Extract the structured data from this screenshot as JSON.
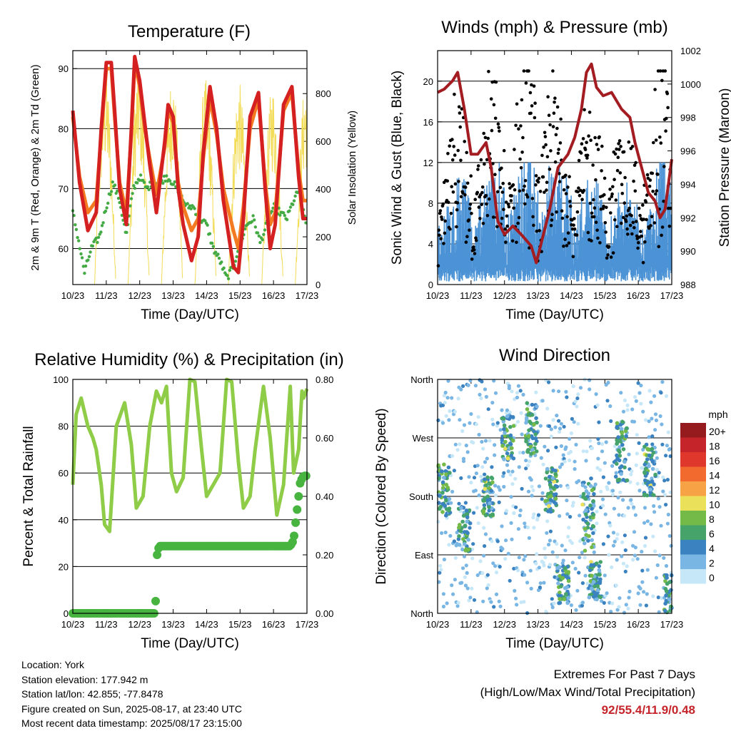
{
  "colors": {
    "temp2m": "#d42020",
    "temp9m": "#f47a22",
    "dewpoint": "#44aa44",
    "solar": "#f2dc58",
    "gust": "#000000",
    "wind": "#4c93d6",
    "pressure": "#a31c21",
    "rh": "#8fcc47",
    "precip": "#48b440",
    "gridline": "#000000",
    "extremes": "#c4242a"
  },
  "speed_scale": {
    "unit": "mph",
    "labels": [
      "20+",
      "18",
      "16",
      "14",
      "12",
      "10",
      "8",
      "6",
      "4",
      "2",
      "0"
    ],
    "colors": [
      "#961b1e",
      "#c4242a",
      "#e0372c",
      "#f26a2e",
      "#f7a345",
      "#ebe05a",
      "#74ba48",
      "#46a36a",
      "#3b82c0",
      "#7ab6e3",
      "#c6e7f7"
    ]
  },
  "chart_data": [
    {
      "type": "line",
      "title": "Temperature (F)",
      "xlabel": "Time (Day/UTC)",
      "ylabel": "2m & 9m T (Red, Orange) & 2m Td (Green)",
      "y2label": "Solar Insolation (Yellow)",
      "x_ticks": [
        "10/23",
        "11/23",
        "12/23",
        "13/23",
        "14/23",
        "15/23",
        "16/23",
        "17/23"
      ],
      "xlim": [
        0,
        7
      ],
      "ylim": [
        54,
        93
      ],
      "y_ticks": [
        60,
        70,
        80,
        90
      ],
      "y2lim": [
        0,
        980
      ],
      "y2_ticks": [
        0,
        200,
        400,
        600,
        800
      ],
      "grid": "horizontal",
      "series": [
        {
          "name": "2m T",
          "key": "temp2m",
          "axis": "y",
          "x": [
            0,
            0.2,
            0.45,
            0.7,
            0.85,
            1.0,
            1.15,
            1.25,
            1.4,
            1.6,
            1.75,
            1.85,
            2.0,
            2.15,
            2.3,
            2.5,
            2.75,
            2.85,
            3.0,
            3.15,
            3.3,
            3.55,
            3.75,
            3.9,
            4.1,
            4.3,
            4.5,
            4.8,
            4.95,
            5.1,
            5.3,
            5.55,
            5.75,
            5.9,
            6.05,
            6.3,
            6.55,
            6.75,
            6.88,
            7.0
          ],
          "y": [
            83,
            71,
            63,
            66,
            80,
            91,
            91,
            83,
            70,
            64,
            80,
            92,
            88,
            81,
            74,
            66,
            78,
            84,
            82,
            70,
            64,
            58,
            62,
            76,
            87,
            80,
            68,
            57,
            56,
            65,
            82,
            86,
            70,
            60,
            64,
            84,
            87,
            72,
            65,
            65
          ]
        },
        {
          "name": "9m T",
          "key": "temp9m",
          "axis": "y",
          "x": [
            0,
            0.2,
            0.45,
            0.7,
            0.85,
            1.0,
            1.15,
            1.25,
            1.4,
            1.6,
            1.75,
            1.85,
            2.0,
            2.15,
            2.3,
            2.5,
            2.75,
            2.85,
            3.0,
            3.15,
            3.3,
            3.55,
            3.75,
            3.9,
            4.1,
            4.3,
            4.5,
            4.8,
            4.95,
            5.1,
            5.3,
            5.55,
            5.75,
            5.9,
            6.05,
            6.3,
            6.55,
            6.75,
            6.88,
            7.0
          ],
          "y": [
            82,
            72,
            66,
            68,
            79,
            90,
            90,
            82,
            71,
            66,
            79,
            91,
            87,
            80,
            75,
            69,
            77,
            83,
            81,
            71,
            67,
            63,
            65,
            75,
            85,
            79,
            70,
            63,
            60,
            67,
            80,
            85,
            71,
            64,
            66,
            83,
            86,
            73,
            68,
            68
          ]
        },
        {
          "name": "2m Td",
          "key": "dewpoint",
          "axis": "y",
          "x": [
            0,
            0.15,
            0.35,
            0.55,
            0.8,
            1.0,
            1.2,
            1.4,
            1.6,
            1.8,
            2.0,
            2.2,
            2.4,
            2.6,
            2.8,
            3.0,
            3.2,
            3.4,
            3.6,
            3.8,
            4.0,
            4.2,
            4.4,
            4.6,
            4.8,
            4.95,
            5.2,
            5.4,
            5.6,
            5.8,
            6.0,
            6.2,
            6.4,
            6.6,
            6.8,
            6.9,
            7.0
          ],
          "y": [
            66,
            62,
            56,
            60,
            62,
            67,
            71,
            68,
            62,
            70,
            72,
            70,
            71,
            71,
            72,
            71,
            69,
            67,
            67,
            65,
            64,
            60,
            58,
            55,
            57,
            60,
            64,
            65,
            61,
            64,
            67,
            66,
            65,
            68,
            70,
            66,
            64
          ]
        },
        {
          "name": "Solar",
          "key": "solar",
          "axis": "y2",
          "peaks_x": [
            0.97,
            1.97,
            2.97,
            3.97,
            4.97,
            5.97,
            6.97
          ],
          "peaks_y": [
            900,
            920,
            880,
            860,
            850,
            840,
            870
          ]
        }
      ]
    },
    {
      "type": "scatter",
      "title": "Winds (mph) & Pressure (mb)",
      "xlabel": "Time (Day/UTC)",
      "ylabel": "Sonic Wind & Gust (Blue, Black)",
      "y2label": "Station Pressure (Maroon)",
      "x_ticks": [
        "10/23",
        "11/23",
        "12/23",
        "13/23",
        "14/23",
        "15/23",
        "16/23",
        "17/23"
      ],
      "xlim": [
        0,
        7
      ],
      "ylim": [
        0,
        23
      ],
      "y_ticks": [
        0,
        4,
        8,
        12,
        16,
        20
      ],
      "y2lim": [
        988,
        1002
      ],
      "y2_ticks": [
        988,
        990,
        992,
        994,
        996,
        998,
        1000,
        1002
      ],
      "grid": "horizontal",
      "series": [
        {
          "name": "Station Pressure",
          "key": "pressure",
          "axis": "y2",
          "x": [
            0,
            0.2,
            0.45,
            0.6,
            0.8,
            1.0,
            1.2,
            1.45,
            1.6,
            1.8,
            2.0,
            2.25,
            2.5,
            2.8,
            2.95,
            3.1,
            3.35,
            3.6,
            3.9,
            4.1,
            4.3,
            4.45,
            4.6,
            4.75,
            4.95,
            5.2,
            5.5,
            5.75,
            5.9,
            6.1,
            6.3,
            6.5,
            6.65,
            6.8,
            7.0
          ],
          "y": [
            999.5,
            999.7,
            1000.2,
            1000.7,
            998.5,
            995.8,
            995.8,
            996.5,
            995.0,
            991.8,
            991.0,
            991.5,
            991.0,
            990.3,
            989.3,
            990.5,
            992.5,
            995.0,
            995.8,
            996.8,
            998.5,
            1000.7,
            1001.2,
            999.8,
            999.3,
            999.5,
            998.5,
            998.0,
            996.5,
            995.0,
            993.5,
            993.0,
            992.0,
            992.5,
            995.5
          ]
        },
        {
          "name": "Gust",
          "key": "gust",
          "axis": "y",
          "daily_peaks": [
            12,
            14,
            16,
            20,
            15,
            13,
            11,
            20
          ]
        },
        {
          "name": "Sonic Wind",
          "key": "wind",
          "axis": "y",
          "daily_peaks": [
            8,
            9,
            10,
            12,
            9,
            8,
            7,
            11
          ]
        }
      ]
    },
    {
      "type": "line",
      "title": "Relative Humidity (%) & Precipitation (in)",
      "xlabel": "Time (Day/UTC)",
      "ylabel": "Percent & Total Rainfall",
      "x_ticks": [
        "10/23",
        "11/23",
        "12/23",
        "13/23",
        "14/23",
        "15/23",
        "16/23",
        "17/23"
      ],
      "xlim": [
        0,
        7
      ],
      "ylim": [
        0,
        100
      ],
      "y_ticks": [
        0,
        20,
        40,
        60,
        80,
        100
      ],
      "y2lim": [
        0,
        0.8
      ],
      "y2_ticks": [
        "0.00",
        "0.20",
        "0.40",
        "0.60",
        "0.80"
      ],
      "grid": "horizontal",
      "series": [
        {
          "name": "RH",
          "key": "rh",
          "axis": "y",
          "x": [
            0,
            0.1,
            0.25,
            0.45,
            0.6,
            0.7,
            0.85,
            0.95,
            1.1,
            1.3,
            1.55,
            1.75,
            1.9,
            2.1,
            2.3,
            2.5,
            2.65,
            2.8,
            2.95,
            3.1,
            3.3,
            3.5,
            3.65,
            3.85,
            4.0,
            4.2,
            4.4,
            4.6,
            4.75,
            4.95,
            5.1,
            5.3,
            5.45,
            5.7,
            5.9,
            6.1,
            6.3,
            6.5,
            6.6,
            6.75,
            6.85,
            6.9,
            7.0
          ],
          "y": [
            55,
            85,
            92,
            80,
            75,
            70,
            55,
            38,
            35,
            80,
            90,
            72,
            45,
            50,
            80,
            95,
            90,
            97,
            60,
            52,
            58,
            100,
            99,
            70,
            50,
            55,
            60,
            100,
            99,
            65,
            45,
            50,
            70,
            97,
            75,
            42,
            55,
            97,
            60,
            70,
            95,
            92,
            96
          ]
        },
        {
          "name": "Precipitation",
          "key": "precip",
          "axis": "y2",
          "x": [
            0,
            2.45,
            2.48,
            2.5,
            2.52,
            2.55,
            2.6,
            6.5,
            6.6,
            6.65,
            6.7,
            6.75,
            6.8,
            6.9,
            7.0
          ],
          "y": [
            0,
            0,
            0.05,
            0.14,
            0.2,
            0.22,
            0.23,
            0.23,
            0.25,
            0.3,
            0.35,
            0.4,
            0.45,
            0.47,
            0.47
          ]
        }
      ]
    },
    {
      "type": "scatter",
      "title": "Wind Direction",
      "xlabel": "Time (Day/UTC)",
      "ylabel": "Direction (Colored By Speed)",
      "x_ticks": [
        "10/23",
        "11/23",
        "12/23",
        "13/23",
        "14/23",
        "15/23",
        "16/23",
        "17/23"
      ],
      "xlim": [
        0,
        7
      ],
      "ylim": [
        0,
        360
      ],
      "y_ticks": [
        "North",
        "East",
        "South",
        "West",
        "North"
      ],
      "y_tick_values": [
        0,
        90,
        180,
        270,
        360
      ],
      "grid": "horizontal",
      "legend": "right",
      "clusters": [
        {
          "x": 0.2,
          "dir": 190,
          "spread": 40
        },
        {
          "x": 0.8,
          "dir": 130,
          "spread": 35
        },
        {
          "x": 1.5,
          "dir": 180,
          "spread": 30
        },
        {
          "x": 2.1,
          "dir": 270,
          "spread": 35
        },
        {
          "x": 2.8,
          "dir": 285,
          "spread": 40
        },
        {
          "x": 3.4,
          "dir": 190,
          "spread": 35
        },
        {
          "x": 3.75,
          "dir": 45,
          "spread": 30
        },
        {
          "x": 4.5,
          "dir": 150,
          "spread": 60
        },
        {
          "x": 4.7,
          "dir": 50,
          "spread": 30
        },
        {
          "x": 5.5,
          "dir": 250,
          "spread": 50
        },
        {
          "x": 6.35,
          "dir": 220,
          "spread": 40
        },
        {
          "x": 6.95,
          "dir": 30,
          "spread": 30
        }
      ]
    }
  ],
  "info": {
    "location": "Location: York",
    "elevation": "Station elevation: 177.942 m",
    "latlon": "Station lat/lon: 42.855; -77.8478",
    "created": "Figure created on Sun, 2025-08-17, at 23:40 UTC",
    "recent": "Most recent data timestamp: 2025/08/17 23:15:00"
  },
  "extremes": {
    "title": "Extremes For Past 7 Days",
    "subtitle": "(High/Low/Max Wind/Total Precipitation)",
    "values": "92/55.4/11.9/0.48"
  }
}
